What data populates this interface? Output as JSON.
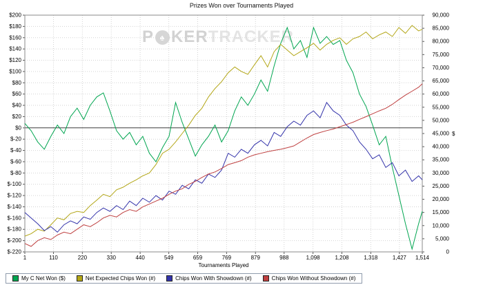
{
  "axes": {
    "x": {
      "title": "Tournaments Played",
      "min": 1,
      "max": 1514,
      "tick_values": [
        1,
        110,
        220,
        330,
        440,
        549,
        659,
        769,
        879,
        988,
        1098,
        1208,
        1318,
        1427,
        1514
      ],
      "tick_labels": [
        "1",
        "110",
        "220",
        "330",
        "440",
        "549",
        "659",
        "769",
        "879",
        "988",
        "1,098",
        "1,208",
        "1,318",
        "1,427",
        "1,514"
      ]
    },
    "y_left": {
      "min": -220,
      "max": 200,
      "tick_values": [
        200,
        180,
        160,
        140,
        120,
        100,
        80,
        60,
        40,
        20,
        0,
        -20,
        -40,
        -60,
        -80,
        -100,
        -120,
        -140,
        -160,
        -180,
        -200,
        -220
      ],
      "tick_labels": [
        "$200",
        "$180",
        "$160",
        "$140",
        "$120",
        "$100",
        "$80",
        "$60",
        "$40",
        "$20",
        "$0",
        "$-20",
        "$-40",
        "$-60",
        "$-80",
        "$-100",
        "$-120",
        "$-140",
        "$-160",
        "$-180",
        "$-200",
        "$-220"
      ]
    },
    "y_right": {
      "min": 0,
      "max": 90000,
      "unit": "$",
      "tick_values": [
        90000,
        85000,
        80000,
        75000,
        70000,
        65000,
        60000,
        55000,
        50000,
        45000,
        40000,
        35000,
        30000,
        25000,
        20000,
        15000,
        10000,
        5000,
        0
      ],
      "tick_labels": [
        "90,000",
        "85,000",
        "80,000",
        "75,000",
        "70,000",
        "65,000",
        "60,000",
        "55,000",
        "50,000",
        "45,000",
        "40,000",
        "35,000",
        "30,000",
        "25,000",
        "20,000",
        "15,000",
        "10,000",
        "5,000",
        "0"
      ]
    }
  },
  "watermark": {
    "p": "P",
    "ker": "KER",
    "tracker": "TRACKER",
    "spade": "♠"
  },
  "chart_data": {
    "type": "line",
    "title": "Prizes Won over Tournaments Played",
    "xlabel": "Tournaments Played",
    "ylabel_left": "$",
    "ylabel_right": "#",
    "xlim": [
      1,
      1514
    ],
    "ylim_left": [
      -220,
      200
    ],
    "ylim_right": [
      0,
      90000
    ],
    "grid": true,
    "legend_position": "bottom-left",
    "zero_line_left": 0,
    "x": [
      1,
      25,
      50,
      75,
      100,
      125,
      150,
      175,
      200,
      225,
      250,
      275,
      300,
      325,
      350,
      375,
      400,
      425,
      450,
      475,
      500,
      525,
      550,
      575,
      600,
      625,
      650,
      675,
      700,
      725,
      750,
      775,
      800,
      825,
      850,
      875,
      900,
      925,
      950,
      975,
      1000,
      1025,
      1050,
      1075,
      1100,
      1125,
      1150,
      1175,
      1200,
      1225,
      1250,
      1275,
      1300,
      1325,
      1350,
      1375,
      1400,
      1425,
      1450,
      1475,
      1500,
      1514
    ],
    "series": [
      {
        "name": "My C Net Won ($)",
        "axis": "left",
        "color": "#00a550",
        "values": [
          8,
          -5,
          -25,
          -38,
          -15,
          5,
          -10,
          20,
          35,
          15,
          40,
          55,
          62,
          30,
          -5,
          -20,
          -8,
          -30,
          -15,
          -45,
          -60,
          -35,
          -15,
          45,
          10,
          -20,
          -50,
          -30,
          -15,
          5,
          -25,
          -5,
          30,
          55,
          40,
          60,
          85,
          65,
          110,
          150,
          178,
          140,
          155,
          125,
          178,
          150,
          162,
          148,
          155,
          120,
          98,
          60,
          38,
          5,
          -30,
          -15,
          -70,
          -120,
          -170,
          -215,
          -170,
          -148
        ]
      },
      {
        "name": "Net Expected Chips Won (#)",
        "axis": "right",
        "color": "#b3a616",
        "values": [
          6000,
          6900,
          8600,
          7900,
          10300,
          12900,
          12200,
          14600,
          15400,
          15000,
          17600,
          19700,
          21900,
          21000,
          23600,
          24600,
          26100,
          27400,
          28900,
          30000,
          33200,
          37500,
          39000,
          41800,
          45000,
          48200,
          51900,
          54600,
          58900,
          62100,
          64700,
          68100,
          70300,
          68600,
          67500,
          71100,
          74600,
          70300,
          76100,
          78900,
          76700,
          74600,
          76100,
          77600,
          79300,
          76700,
          78900,
          80400,
          81400,
          78900,
          81000,
          81900,
          83600,
          81000,
          82500,
          83600,
          81900,
          85300,
          83100,
          86100,
          84000,
          84600
        ]
      },
      {
        "name": "Chips Won With Showdown (#)",
        "axis": "right",
        "color": "#3333aa",
        "values": [
          15000,
          12900,
          10700,
          8100,
          9600,
          7500,
          10300,
          11800,
          10700,
          13300,
          12400,
          15000,
          16700,
          15400,
          17600,
          16100,
          19300,
          17600,
          20400,
          18900,
          21400,
          19700,
          23100,
          21900,
          25300,
          24000,
          27400,
          26100,
          29600,
          28300,
          31100,
          37500,
          36000,
          39000,
          37500,
          40700,
          42400,
          40300,
          45400,
          43900,
          47600,
          49700,
          48200,
          51900,
          53600,
          51000,
          56800,
          53600,
          51900,
          48200,
          46100,
          41800,
          39000,
          35400,
          36900,
          32100,
          33900,
          28900,
          31100,
          26800,
          28900,
          27400
        ]
      },
      {
        "name": "Chips Won Without Showdown (#)",
        "axis": "right",
        "color": "#bf4040",
        "values": [
          3200,
          2100,
          4300,
          5400,
          4700,
          6400,
          7500,
          6900,
          8600,
          10300,
          9600,
          11100,
          12900,
          13900,
          13300,
          15000,
          16100,
          15400,
          17100,
          18200,
          19300,
          20400,
          21900,
          23100,
          24000,
          25700,
          26800,
          28300,
          29600,
          30400,
          31700,
          33200,
          33900,
          34700,
          36000,
          36900,
          37500,
          38100,
          38600,
          39000,
          39600,
          40300,
          41800,
          43300,
          44600,
          45400,
          46100,
          46700,
          47600,
          48400,
          49300,
          50400,
          51400,
          52500,
          53600,
          54600,
          56100,
          57900,
          59600,
          61100,
          62600,
          63900
        ]
      }
    ]
  }
}
